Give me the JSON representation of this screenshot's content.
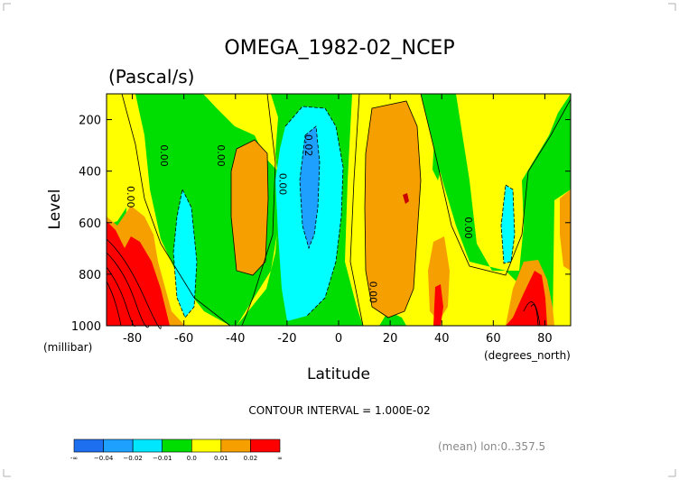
{
  "chart_data": {
    "type": "heatmap",
    "title": "OMEGA_1982-02_NCEP",
    "subtitle": "(Pascal/s)",
    "xlabel": "Latitude",
    "ylabel": "Level",
    "x_units": "(degrees_north)",
    "y_units": "(millibar)",
    "xlim": [
      -90,
      90
    ],
    "ylim": [
      1000,
      100
    ],
    "x_ticks": [
      "-80",
      "-60",
      "-40",
      "-20",
      "0",
      "20",
      "40",
      "60",
      "80"
    ],
    "x_tick_values": [
      -80,
      -60,
      -40,
      -20,
      0,
      20,
      40,
      60,
      80
    ],
    "y_ticks": [
      "200",
      "400",
      "600",
      "800",
      "1000"
    ],
    "y_tick_values": [
      200,
      400,
      600,
      800,
      1000
    ],
    "contour_interval_text": "CONTOUR INTERVAL = 1.000E-02",
    "footnote": "(mean) lon:0..357.5",
    "contour_labels": [
      {
        "text": "0.00",
        "lat": -82,
        "lev": 500
      },
      {
        "text": "0.00",
        "lat": -69,
        "lev": 340
      },
      {
        "text": "0.00",
        "lat": -47,
        "lev": 340
      },
      {
        "text": "0.00",
        "lat": -23,
        "lev": 450
      },
      {
        "text": "0.02",
        "lat": -13,
        "lev": 300
      },
      {
        "text": "0.00",
        "lat": 12,
        "lev": 870
      },
      {
        "text": "0.00",
        "lat": 49,
        "lev": 620
      }
    ],
    "colorbar": {
      "labels": [
        "-∞",
        "−0.04",
        "−0.02",
        "−0.01",
        "0.0",
        "0.01",
        "0.02",
        "∞"
      ],
      "colors": [
        "#1e6ef0",
        "#1ea0ff",
        "#00e6ff",
        "#00dd00",
        "#ffff00",
        "#f5a000",
        "#ff0000"
      ]
    },
    "colors": {
      "strong_neg": "#1ea0ff",
      "neg": "#00ffff",
      "weak_neg": "#00dd00",
      "weak_pos": "#ffff00",
      "pos": "#f5a000",
      "strong_pos": "#ff0000",
      "dark_pos": "#c80000"
    }
  }
}
